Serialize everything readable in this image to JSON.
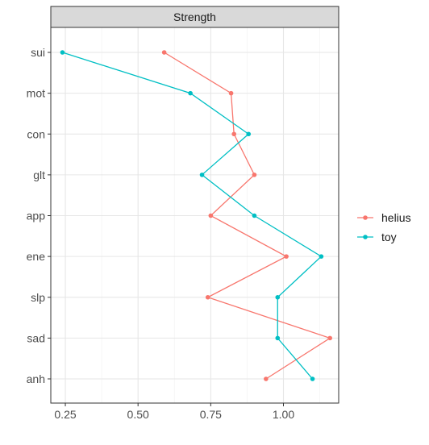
{
  "chart_data": {
    "type": "line",
    "facet_label": "Strength",
    "title": "",
    "xlabel": "",
    "ylabel": "",
    "xlim": [
      0.2,
      1.19
    ],
    "x_ticks": [
      0.25,
      0.5,
      0.75,
      1.0
    ],
    "x_tick_labels": [
      "0.25",
      "0.50",
      "0.75",
      "1.00"
    ],
    "categories": [
      "sui",
      "mot",
      "con",
      "glt",
      "app",
      "ene",
      "slp",
      "sad",
      "anh"
    ],
    "grid": true,
    "legend_position": "right",
    "series": [
      {
        "name": "helius",
        "color": "#F8766D",
        "values": [
          0.59,
          0.82,
          0.83,
          0.9,
          0.75,
          1.01,
          0.74,
          1.16,
          0.94
        ]
      },
      {
        "name": "toy",
        "color": "#00BFC4",
        "values": [
          0.24,
          0.68,
          0.88,
          0.72,
          0.9,
          1.13,
          0.98,
          0.98,
          1.1
        ]
      }
    ]
  }
}
